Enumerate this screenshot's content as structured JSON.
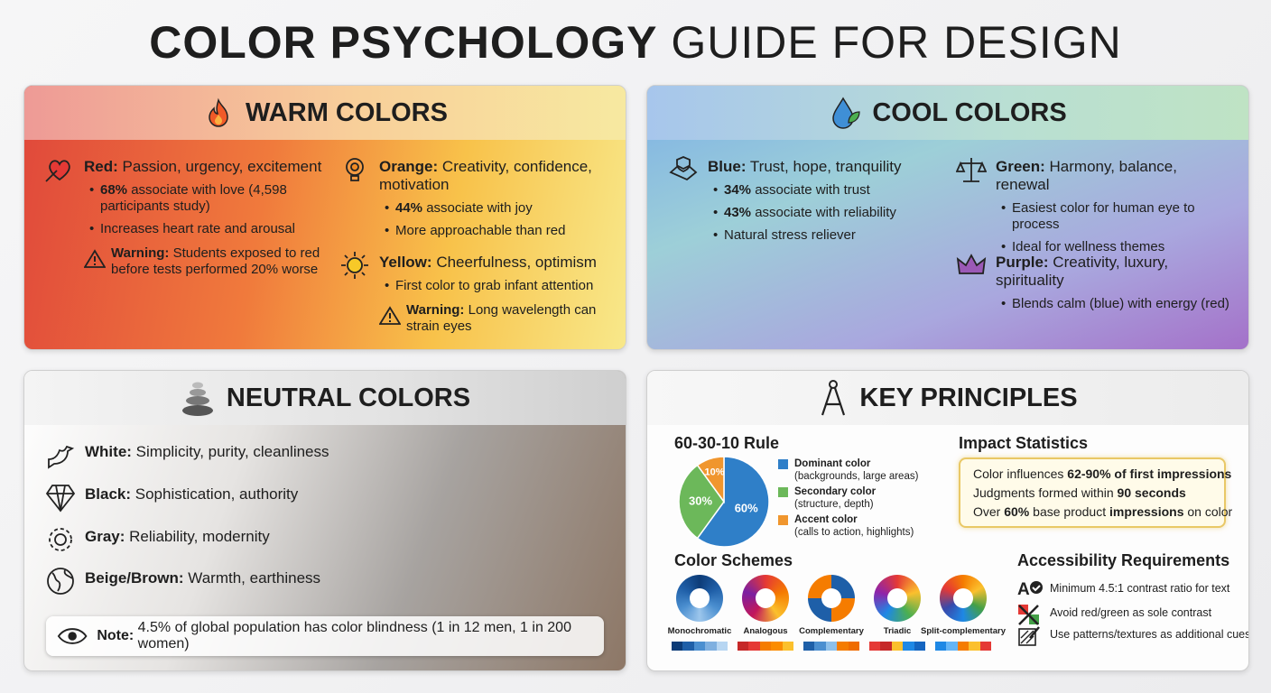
{
  "title": {
    "bold": "COLOR PSYCHOLOGY",
    "rest": "GUIDE FOR DESIGN"
  },
  "warm": {
    "heading": "WARM COLORS",
    "items": [
      {
        "name": "Red:",
        "desc": "Passion, urgency, excitement",
        "bullets": [
          {
            "bold": "68%",
            "text": "associate with love (4,598 participants study)"
          },
          {
            "text": "Increases heart rate and arousal"
          }
        ],
        "warning": {
          "label": "Warning:",
          "text": "Students exposed to red before tests performed 20% worse"
        }
      },
      {
        "name": "Orange:",
        "desc": "Creativity, confidence, motivation",
        "bullets": [
          {
            "bold": "44%",
            "text": "associate with joy"
          },
          {
            "text": "More approachable than red"
          }
        ]
      },
      {
        "name": "Yellow:",
        "desc": "Cheerfulness, optimism",
        "bullets": [
          {
            "text": "First color to grab infant attention"
          }
        ],
        "warning": {
          "label": "Warning:",
          "text": "Long wavelength can strain eyes"
        }
      }
    ]
  },
  "cool": {
    "heading": "COOL COLORS",
    "items": [
      {
        "name": "Blue:",
        "desc": "Trust, hope, tranquility",
        "bullets": [
          {
            "bold": "34%",
            "text": "associate with trust"
          },
          {
            "bold": "43%",
            "text": "associate with reliability"
          },
          {
            "text": "Natural stress reliever"
          }
        ]
      },
      {
        "name": "Green:",
        "desc": "Harmony, balance, renewal",
        "bullets": [
          {
            "text": "Easiest color for human eye to process"
          },
          {
            "text": "Ideal for wellness themes"
          }
        ]
      },
      {
        "name": "Purple:",
        "desc": "Creativity, luxury, spirituality",
        "bullets": [
          {
            "text": "Blends calm (blue) with energy (red)"
          }
        ]
      }
    ]
  },
  "neutral": {
    "heading": "NEUTRAL COLORS",
    "items": [
      {
        "name": "White:",
        "desc": "Simplicity, purity, cleanliness"
      },
      {
        "name": "Black:",
        "desc": "Sophistication, authority"
      },
      {
        "name": "Gray:",
        "desc": "Reliability, modernity"
      },
      {
        "name": "Beige/Brown:",
        "desc": "Warmth, earthiness"
      }
    ],
    "note": {
      "label": "Note:",
      "text": "4.5% of global population has color blindness (1 in 12 men, 1 in 200 women)"
    }
  },
  "key": {
    "heading": "KEY PRINCIPLES",
    "rule_chart": {
      "type": "pie",
      "title": "60-30-10 Rule",
      "categories": [
        "Dominant color",
        "Secondary color",
        "Accent color"
      ],
      "descriptions": [
        "(backgrounds, large areas)",
        "(structure, depth)",
        "(calls to action, highlights)"
      ],
      "values": [
        60,
        30,
        10
      ],
      "value_labels": [
        "60%",
        "30%",
        "10%"
      ],
      "colors": [
        "#2f7fc8",
        "#6cb85a",
        "#f0962e"
      ]
    },
    "impact": {
      "title": "Impact Statistics",
      "lines": [
        [
          {
            "text": "Color influences ",
            "bold": false
          },
          {
            "text": "62-90% of first impressions",
            "bold": true
          }
        ],
        [
          {
            "text": "Judgments formed within ",
            "bold": false
          },
          {
            "text": "90 seconds",
            "bold": true
          }
        ],
        [
          {
            "text": "Over ",
            "bold": false
          },
          {
            "text": "60%",
            "bold": true
          },
          {
            "text": " base product ",
            "bold": false
          },
          {
            "text": "impressions",
            "bold": true
          },
          {
            "text": " on color",
            "bold": false
          }
        ]
      ]
    },
    "schemes": {
      "title": "Color Schemes",
      "names": [
        "Monochromatic",
        "Analogous",
        "Complementary",
        "Triadic",
        "Split-complementary"
      ]
    },
    "accessibility": {
      "title": "Accessibility Requirements",
      "items": [
        "Minimum 4.5:1 contrast ratio for text",
        "Avoid red/green as sole contrast",
        "Use patterns/textures as additional cues"
      ]
    }
  }
}
